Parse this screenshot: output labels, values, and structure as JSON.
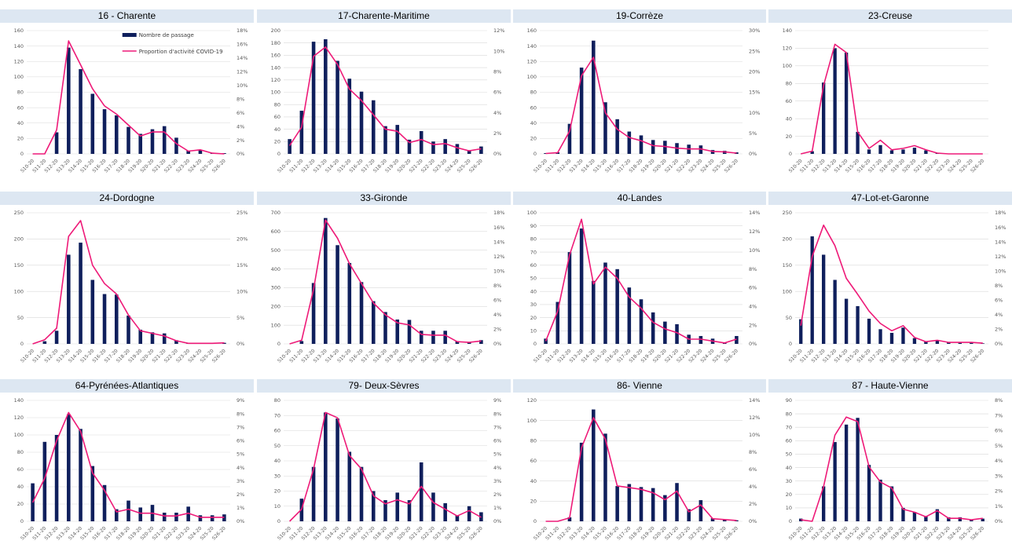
{
  "colors": {
    "bar": "#0f1f5c",
    "line": "#ee1a78",
    "header_bg": "#dde7f2",
    "grid": "#d9d9d9"
  },
  "legend": {
    "bar_label": "Nombre de passage",
    "line_label": "Proportion d'activité COVID-19"
  },
  "chart_data": [
    {
      "type": "bar",
      "title": "16 - Charente",
      "categories": [
        "S10-20",
        "S11-20",
        "S12-20",
        "S13-20",
        "S14-20",
        "S15-20",
        "S16-20",
        "S17-20",
        "S18-20",
        "S19-20",
        "S20-20",
        "S21-20",
        "S22-20",
        "S23-20",
        "S24-20",
        "S25-20",
        "S26-20"
      ],
      "series": [
        {
          "name": "Nombre de passage",
          "axis": "left",
          "values": [
            0,
            0,
            28,
            138,
            110,
            78,
            58,
            50,
            35,
            26,
            32,
            36,
            21,
            4,
            5,
            1,
            1
          ]
        },
        {
          "name": "Proportion d'activité COVID-19",
          "axis": "right",
          "values": [
            0,
            0,
            3.5,
            16.5,
            13,
            9.5,
            7,
            5.8,
            4.2,
            2.6,
            3.2,
            3.2,
            1.5,
            0.4,
            0.6,
            0.1,
            0
          ]
        }
      ],
      "ylim_left": [
        0,
        160
      ],
      "yticks_left": [
        0,
        20,
        40,
        60,
        80,
        100,
        120,
        140,
        160
      ],
      "ylim_right": [
        0,
        18
      ],
      "yticks_right": [
        0,
        2,
        4,
        6,
        8,
        10,
        12,
        14,
        16,
        18
      ],
      "legend": "top-right"
    },
    {
      "type": "bar",
      "title": "17-Charente-Maritime",
      "categories": [
        "S10-20",
        "S11-20",
        "S12-20",
        "S13-20",
        "S14-20",
        "S15-20",
        "S16-20",
        "S17-20",
        "S18-20",
        "S19-20",
        "S20-20",
        "S21-20",
        "S22-20",
        "S23-20",
        "S24-20",
        "S25-20",
        "S26-20"
      ],
      "series": [
        {
          "name": "Nombre de passage",
          "axis": "left",
          "values": [
            24,
            70,
            182,
            186,
            151,
            122,
            101,
            87,
            45,
            47,
            23,
            37,
            20,
            24,
            16,
            6,
            12
          ]
        },
        {
          "name": "Proportion d'activité COVID-19",
          "axis": "right",
          "values": [
            0.8,
            2.6,
            9.5,
            10.4,
            8.7,
            6.3,
            5.2,
            3.8,
            2.4,
            2.2,
            1.1,
            1.4,
            0.9,
            1.0,
            0.6,
            0.3,
            0.5
          ]
        }
      ],
      "ylim_left": [
        0,
        200
      ],
      "yticks_left": [
        0,
        20,
        40,
        60,
        80,
        100,
        120,
        140,
        160,
        180,
        200
      ],
      "ylim_right": [
        0,
        12
      ],
      "yticks_right": [
        0,
        2,
        4,
        6,
        8,
        10,
        12
      ]
    },
    {
      "type": "bar",
      "title": "19-Corrèze",
      "categories": [
        "S10-20",
        "S11-20",
        "S12-20",
        "S13-20",
        "S14-20",
        "S15-20",
        "S16-20",
        "S17-20",
        "S18-20",
        "S19-20",
        "S20-20",
        "S21-20",
        "S22-20",
        "S23-20",
        "S24-20",
        "S25-20",
        "S26-20"
      ],
      "series": [
        {
          "name": "Nombre de passage",
          "axis": "left",
          "values": [
            1,
            2,
            39,
            112,
            147,
            67,
            45,
            29,
            24,
            18,
            17,
            14,
            12,
            11,
            5,
            4,
            2
          ]
        },
        {
          "name": "Proportion d'activité COVID-19",
          "axis": "right",
          "values": [
            0.1,
            0.3,
            5.5,
            19,
            23.5,
            10,
            6,
            4,
            3.2,
            2,
            1.8,
            1.4,
            1.2,
            1.2,
            0.6,
            0.5,
            0.2
          ]
        }
      ],
      "ylim_left": [
        0,
        160
      ],
      "yticks_left": [
        0,
        20,
        40,
        60,
        80,
        100,
        120,
        140,
        160
      ],
      "ylim_right": [
        0,
        30
      ],
      "yticks_right": [
        0,
        5,
        10,
        15,
        20,
        25,
        30
      ]
    },
    {
      "type": "bar",
      "title": "23-Creuse",
      "categories": [
        "S10-20",
        "S11-20",
        "S12-20",
        "S13-20",
        "S14-20",
        "S15-20",
        "S16-20",
        "S17-20",
        "S18-20",
        "S19-20",
        "S20-20",
        "S21-20",
        "S22-20",
        "S23-20",
        "S24-20",
        "S25-20",
        "S26-20"
      ],
      "series": [
        {
          "name": "Nombre de passage",
          "axis": "left",
          "values": [
            0,
            3,
            81,
            120,
            115,
            25,
            5,
            10,
            4,
            5,
            7,
            4,
            1,
            0,
            0,
            0,
            0
          ]
        },
        {
          "name": "Proportion d'activité COVID-19",
          "axis": "right",
          "values": [
            0,
            1,
            25,
            40,
            37,
            8,
            2,
            5,
            1.5,
            2,
            3,
            1.5,
            0.3,
            0,
            0,
            0,
            0
          ]
        }
      ],
      "ylim_left": [
        0,
        140
      ],
      "yticks_left": [
        0,
        20,
        40,
        60,
        80,
        100,
        120,
        140
      ],
      "ylim_right": [
        0,
        45
      ]
    },
    {
      "type": "bar",
      "title": "24-Dordogne",
      "categories": [
        "S10-20",
        "S11-20",
        "S12-20",
        "S13-20",
        "S14-20",
        "S15-20",
        "S16-20",
        "S17-20",
        "S18-20",
        "S19-20",
        "S20-20",
        "S21-20",
        "S22-20",
        "S23-20",
        "S24-20",
        "S25-20",
        "S26-20"
      ],
      "series": [
        {
          "name": "Nombre de passage",
          "axis": "left",
          "values": [
            0,
            5,
            25,
            170,
            193,
            122,
            95,
            94,
            54,
            27,
            22,
            20,
            7,
            1,
            1,
            1,
            2
          ]
        },
        {
          "name": "Proportion d'activité COVID-19",
          "axis": "right",
          "values": [
            0,
            0.8,
            3,
            20.5,
            23.5,
            15,
            11.5,
            9.5,
            5.5,
            2.5,
            2,
            1.5,
            0.6,
            0.1,
            0.1,
            0.1,
            0.2
          ]
        }
      ],
      "ylim_left": [
        0,
        250
      ],
      "yticks_left": [
        0,
        50,
        100,
        150,
        200,
        250
      ],
      "ylim_right": [
        0,
        25
      ],
      "yticks_right": [
        0,
        5,
        10,
        15,
        20,
        25
      ]
    },
    {
      "type": "bar",
      "title": "33-Gironde",
      "categories": [
        "S10-20",
        "S11-20",
        "S12-20",
        "S13-20",
        "S14-20",
        "S15-20",
        "S16-20",
        "S17-20",
        "S18-20",
        "S19-20",
        "S20-20",
        "S21-20",
        "S22-20",
        "S23-20",
        "S24-20",
        "S25-20",
        "S26-20"
      ],
      "series": [
        {
          "name": "Nombre de passage",
          "axis": "left",
          "values": [
            0,
            15,
            325,
            672,
            527,
            432,
            330,
            228,
            170,
            130,
            128,
            70,
            70,
            70,
            15,
            10,
            20
          ]
        },
        {
          "name": "Proportion d'activité COVID-19",
          "axis": "right",
          "values": [
            0,
            0.5,
            7.5,
            17,
            14.5,
            11,
            8.3,
            5.6,
            4,
            2.9,
            2.6,
            1.3,
            1.2,
            1.2,
            0.3,
            0.2,
            0.4
          ]
        }
      ],
      "ylim_left": [
        0,
        700
      ],
      "yticks_left": [
        0,
        100,
        200,
        300,
        400,
        500,
        600,
        700
      ],
      "ylim_right": [
        0,
        18
      ],
      "yticks_right": [
        0,
        2,
        4,
        6,
        8,
        10,
        12,
        14,
        16,
        18
      ]
    },
    {
      "type": "bar",
      "title": "40-Landes",
      "categories": [
        "S10-20",
        "S11-20",
        "S12-20",
        "S13-20",
        "S14-20",
        "S15-20",
        "S16-20",
        "S17-20",
        "S18-20",
        "S19-20",
        "S20-20",
        "S21-20",
        "S22-20",
        "S23-20",
        "S24-20",
        "S25-20",
        "S26-20"
      ],
      "series": [
        {
          "name": "Nombre de passage",
          "axis": "left",
          "values": [
            4,
            32,
            70,
            88,
            48,
            62,
            57,
            43,
            34,
            24,
            17,
            15,
            7,
            6,
            4,
            1,
            6
          ]
        },
        {
          "name": "Proportion d'activité COVID-19",
          "axis": "right",
          "values": [
            0.3,
            3.5,
            9.5,
            13.3,
            6.4,
            8.2,
            7,
            5,
            3.8,
            2.3,
            1.6,
            1.2,
            0.5,
            0.5,
            0.3,
            0.1,
            0.5
          ]
        }
      ],
      "ylim_left": [
        0,
        100
      ],
      "yticks_left": [
        0,
        10,
        20,
        30,
        40,
        50,
        60,
        70,
        80,
        90,
        100
      ],
      "ylim_right": [
        0,
        14
      ],
      "yticks_right": [
        0,
        2,
        4,
        6,
        8,
        10,
        12,
        14
      ]
    },
    {
      "type": "bar",
      "title": "47-Lot-et-Garonne",
      "categories": [
        "S10-20",
        "S11-20",
        "S12-20",
        "S13-20",
        "S14-20",
        "S15-20",
        "S16-20",
        "S17-20",
        "S18-20",
        "S19-20",
        "S20-20",
        "S21-20",
        "S22-20",
        "S23-20",
        "S24-20",
        "S25-20",
        "S26-20"
      ],
      "series": [
        {
          "name": "Nombre de passage",
          "axis": "left",
          "values": [
            47,
            205,
            170,
            122,
            86,
            72,
            48,
            28,
            21,
            31,
            11,
            4,
            6,
            3,
            2,
            2,
            1
          ]
        },
        {
          "name": "Proportion d'activité COVID-19",
          "axis": "right",
          "values": [
            2.5,
            12,
            16.3,
            13.5,
            9,
            6.8,
            4.5,
            2.8,
            1.8,
            2.5,
            0.9,
            0.3,
            0.5,
            0.2,
            0.2,
            0.2,
            0.1
          ]
        }
      ],
      "ylim_left": [
        0,
        250
      ],
      "yticks_left": [
        0,
        50,
        100,
        150,
        200,
        250
      ],
      "ylim_right": [
        0,
        18
      ],
      "yticks_right": [
        0,
        2,
        4,
        6,
        8,
        10,
        12,
        14,
        16,
        18
      ]
    },
    {
      "type": "bar",
      "title": "64-Pyrénées-Atlantiques",
      "categories": [
        "S10-20",
        "S11-20",
        "S12-20",
        "S13-20",
        "S14-20",
        "S15-20",
        "S16-20",
        "S17-20",
        "S18-20",
        "S19-20",
        "S20-20",
        "S21-20",
        "S22-20",
        "S23-20",
        "S24-20",
        "S25-20",
        "S26-20"
      ],
      "series": [
        {
          "name": "Nombre de passage",
          "axis": "left",
          "values": [
            44,
            92,
            100,
            124,
            107,
            64,
            42,
            14,
            24,
            16,
            19,
            10,
            10,
            17,
            7,
            7,
            8
          ]
        },
        {
          "name": "Proportion d'activité COVID-19",
          "axis": "right",
          "values": [
            1.4,
            3.2,
            6,
            8.1,
            6.7,
            3.6,
            2.3,
            0.7,
            0.9,
            0.6,
            0.6,
            0.4,
            0.4,
            0.6,
            0.3,
            0.3,
            0.3
          ]
        }
      ],
      "ylim_left": [
        0,
        140
      ],
      "yticks_left": [
        0,
        20,
        40,
        60,
        80,
        100,
        120,
        140
      ],
      "ylim_right": [
        0,
        9
      ],
      "yticks_right": [
        0,
        1,
        2,
        3,
        4,
        5,
        6,
        7,
        8,
        9
      ]
    },
    {
      "type": "bar",
      "title": "79- Deux-Sèvres",
      "categories": [
        "S10-20",
        "S11-20",
        "S12-20",
        "S13-20",
        "S14-20",
        "S15-20",
        "S16-20",
        "S17-20",
        "S18-20",
        "S19-20",
        "S20-20",
        "S21-20",
        "S22-20",
        "S23-20",
        "S24-20",
        "S25-20",
        "S26-20"
      ],
      "series": [
        {
          "name": "Nombre de passage",
          "axis": "left",
          "values": [
            0,
            15,
            36,
            72,
            68,
            46,
            36,
            20,
            14,
            19,
            14,
            39,
            19,
            12,
            4,
            10,
            6
          ]
        },
        {
          "name": "Proportion d'activité COVID-19",
          "axis": "right",
          "values": [
            0,
            0.9,
            3.9,
            8.1,
            7.7,
            4.9,
            3.9,
            1.9,
            1.3,
            1.6,
            1.3,
            2.6,
            1.4,
            0.9,
            0.4,
            0.8,
            0.3
          ]
        }
      ],
      "ylim_left": [
        0,
        80
      ],
      "yticks_left": [
        0,
        10,
        20,
        30,
        40,
        50,
        60,
        70,
        80
      ],
      "ylim_right": [
        0,
        9
      ],
      "yticks_right": [
        0,
        1,
        2,
        3,
        4,
        5,
        6,
        7,
        8,
        9
      ]
    },
    {
      "type": "bar",
      "title": "86- Vienne",
      "categories": [
        "S10-20",
        "S11-20",
        "S12-20",
        "S13-20",
        "S14-20",
        "S15-20",
        "S16-20",
        "S17-20",
        "S18-20",
        "S19-20",
        "S20-20",
        "S21-20",
        "S22-20",
        "S23-20",
        "S24-20",
        "S25-20",
        "S26-20"
      ],
      "series": [
        {
          "name": "Nombre de passage",
          "axis": "left",
          "values": [
            0,
            0,
            4,
            78,
            111,
            87,
            35,
            37,
            34,
            33,
            26,
            38,
            12,
            21,
            3,
            2,
            1
          ]
        },
        {
          "name": "Proportion d'activité COVID-19",
          "axis": "right",
          "values": [
            0,
            0,
            0.4,
            8.5,
            12,
            9.5,
            4.1,
            3.9,
            3.7,
            3.3,
            2.5,
            3.5,
            1.1,
            1.9,
            0.3,
            0.2,
            0.1
          ]
        }
      ],
      "ylim_left": [
        0,
        120
      ],
      "yticks_left": [
        0,
        20,
        40,
        60,
        80,
        100,
        120
      ],
      "ylim_right": [
        0,
        14
      ],
      "yticks_right": [
        0,
        2,
        4,
        6,
        8,
        10,
        12,
        14
      ]
    },
    {
      "type": "bar",
      "title": "87 - Haute-Vienne",
      "categories": [
        "S10-20",
        "S11-20",
        "S12-20",
        "S13-20",
        "S14-20",
        "S15-20",
        "S16-20",
        "S17-20",
        "S18-20",
        "S19-20",
        "S20-20",
        "S21-20",
        "S22-20",
        "S23-20",
        "S24-20",
        "S25-20",
        "S26-20"
      ],
      "series": [
        {
          "name": "Nombre de passage",
          "axis": "left",
          "values": [
            2,
            0,
            26,
            59,
            72,
            77,
            42,
            31,
            26,
            10,
            7,
            4,
            9,
            3,
            3,
            1,
            2
          ]
        },
        {
          "name": "Proportion d'activité COVID-19",
          "axis": "right",
          "values": [
            0.1,
            0,
            2.3,
            5.7,
            6.9,
            6.6,
            3.6,
            2.6,
            2.2,
            0.8,
            0.6,
            0.3,
            0.7,
            0.2,
            0.2,
            0.1,
            0.2
          ]
        }
      ],
      "ylim_left": [
        0,
        90
      ],
      "yticks_left": [
        0,
        10,
        20,
        30,
        40,
        50,
        60,
        70,
        80,
        90
      ],
      "ylim_right": [
        0,
        8
      ],
      "yticks_right": [
        0,
        1,
        2,
        3,
        4,
        5,
        6,
        7,
        8
      ]
    }
  ]
}
